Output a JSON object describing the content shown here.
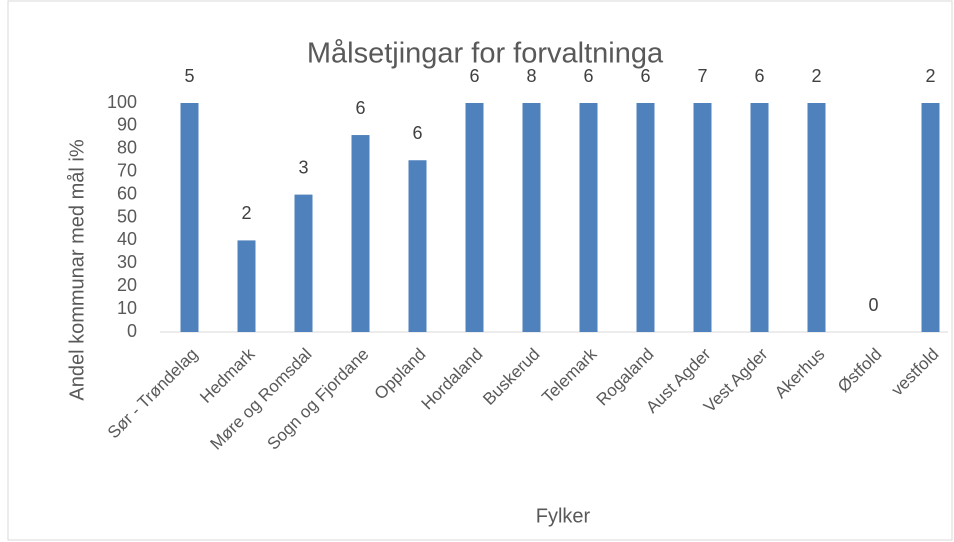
{
  "chart_data": {
    "type": "bar",
    "title": "Målsetjingar for forvaltninga",
    "x_label": "Fylker",
    "y_label": "Andel kommunar med mål i%",
    "categories": [
      "Sør - Trøndelag",
      "Hedmark",
      "Møre og Romsdal",
      "Sogn og Fjordane",
      "Oppland",
      "Hordaland",
      "Buskerud",
      "Telemark",
      "Rogaland",
      "Aust Agder",
      "Vest Agder",
      "Akerhus",
      "Østfold",
      "vestfold"
    ],
    "values": [
      100,
      40,
      60,
      86,
      75,
      100,
      100,
      100,
      100,
      100,
      100,
      100,
      0,
      100
    ],
    "data_labels": [
      5,
      2,
      3,
      6,
      6,
      6,
      8,
      6,
      6,
      7,
      6,
      2,
      0,
      2
    ],
    "color": "#4f81bd",
    "ylim": [
      0,
      100
    ],
    "yticks": [
      0,
      10,
      20,
      30,
      40,
      50,
      60,
      70,
      80,
      90,
      100
    ],
    "grid": false
  }
}
